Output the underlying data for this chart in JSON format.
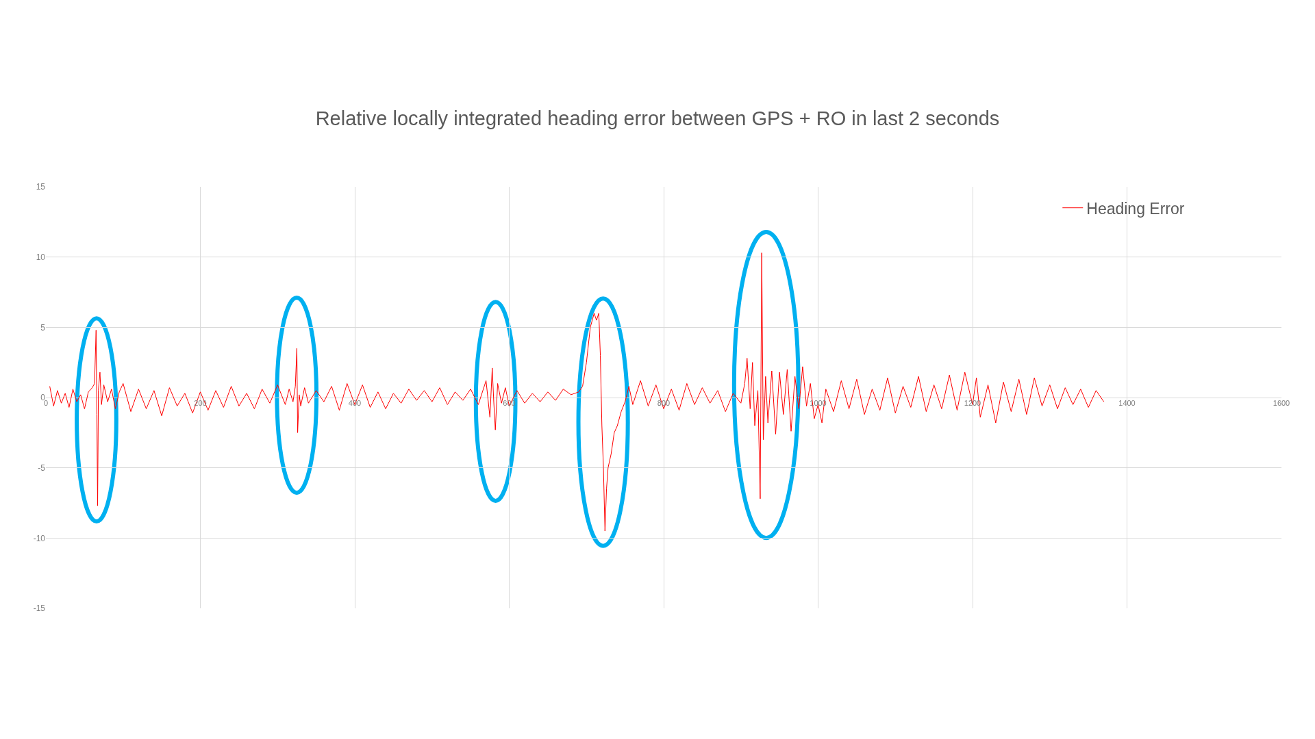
{
  "chart_data": {
    "type": "line",
    "title": "Relative locally integrated heading error between GPS + RO in last 2 seconds",
    "x": [
      5,
      10,
      15,
      20,
      25,
      30,
      35,
      40,
      45,
      50,
      55,
      60,
      63,
      65,
      66,
      67,
      68,
      70,
      72,
      75,
      80,
      85,
      90,
      95,
      100,
      110,
      120,
      130,
      140,
      150,
      160,
      170,
      180,
      190,
      200,
      210,
      220,
      230,
      240,
      250,
      260,
      270,
      280,
      290,
      300,
      310,
      315,
      320,
      323,
      325,
      326,
      328,
      330,
      335,
      340,
      350,
      360,
      370,
      380,
      390,
      400,
      410,
      420,
      430,
      440,
      450,
      460,
      470,
      480,
      490,
      500,
      510,
      520,
      530,
      540,
      550,
      560,
      570,
      575,
      578,
      580,
      582,
      585,
      590,
      595,
      600,
      610,
      620,
      630,
      640,
      650,
      660,
      670,
      680,
      690,
      695,
      700,
      705,
      710,
      713,
      716,
      718,
      720,
      722,
      724,
      726,
      728,
      732,
      736,
      740,
      745,
      750,
      755,
      760,
      770,
      780,
      790,
      800,
      810,
      820,
      830,
      840,
      850,
      860,
      870,
      880,
      890,
      900,
      905,
      908,
      912,
      915,
      918,
      922,
      925,
      927,
      929,
      932,
      935,
      940,
      945,
      950,
      955,
      960,
      965,
      970,
      975,
      980,
      985,
      990,
      995,
      1000,
      1005,
      1010,
      1020,
      1030,
      1040,
      1050,
      1060,
      1070,
      1080,
      1090,
      1100,
      1110,
      1120,
      1130,
      1140,
      1150,
      1160,
      1170,
      1180,
      1190,
      1200,
      1205,
      1210,
      1220,
      1230,
      1240,
      1250,
      1260,
      1270,
      1280,
      1290,
      1300,
      1310,
      1320,
      1330,
      1340,
      1350,
      1360,
      1370
    ],
    "series": [
      {
        "name": "Heading Error",
        "color": "#ff0000",
        "values": [
          0.8,
          -0.6,
          0.5,
          -0.4,
          0.3,
          -0.7,
          0.6,
          -0.3,
          0.2,
          -0.8,
          0.4,
          0.7,
          1.0,
          4.8,
          -1.2,
          -7.7,
          0.5,
          1.8,
          -0.5,
          0.9,
          -0.3,
          0.6,
          -0.8,
          0.4,
          1.0,
          -1.0,
          0.6,
          -0.8,
          0.5,
          -1.3,
          0.7,
          -0.6,
          0.3,
          -1.1,
          0.4,
          -0.9,
          0.5,
          -0.7,
          0.8,
          -0.6,
          0.3,
          -0.8,
          0.6,
          -0.4,
          0.9,
          -0.5,
          0.6,
          -0.3,
          0.8,
          3.5,
          -2.5,
          0.2,
          -0.6,
          0.7,
          -0.4,
          0.5,
          -0.3,
          0.8,
          -0.9,
          1.0,
          -0.5,
          0.9,
          -0.7,
          0.4,
          -0.8,
          0.3,
          -0.4,
          0.6,
          -0.2,
          0.5,
          -0.3,
          0.7,
          -0.5,
          0.4,
          -0.2,
          0.6,
          -0.5,
          1.2,
          -1.4,
          2.1,
          -0.3,
          -2.3,
          1.0,
          -0.4,
          0.7,
          -0.6,
          0.5,
          -0.4,
          0.3,
          -0.3,
          0.4,
          -0.2,
          0.6,
          0.2,
          0.4,
          0.8,
          2.5,
          5.0,
          6.0,
          5.5,
          6.0,
          3.0,
          -2.0,
          -5.0,
          -9.5,
          -6.5,
          -5.0,
          -4.0,
          -2.5,
          -2.0,
          -1.0,
          -0.3,
          0.8,
          -0.5,
          1.2,
          -0.6,
          0.9,
          -0.8,
          0.6,
          -0.9,
          1.0,
          -0.5,
          0.7,
          -0.4,
          0.5,
          -1.0,
          0.3,
          -0.4,
          1.0,
          2.8,
          -0.8,
          2.5,
          -2.0,
          0.5,
          -7.2,
          10.3,
          -3.0,
          1.5,
          -1.8,
          1.9,
          -2.6,
          1.8,
          -1.2,
          2.0,
          -2.4,
          1.5,
          -0.8,
          2.2,
          -0.6,
          1.0,
          -1.5,
          -0.5,
          -1.8,
          0.6,
          -1.0,
          1.2,
          -0.8,
          1.3,
          -1.2,
          0.6,
          -0.9,
          1.4,
          -1.1,
          0.8,
          -0.7,
          1.5,
          -1.0,
          0.9,
          -0.8,
          1.6,
          -0.9,
          1.8,
          -0.5,
          1.4,
          -1.4,
          0.9,
          -1.8,
          1.1,
          -1.0,
          1.3,
          -1.2,
          1.4,
          -0.6,
          0.9,
          -0.8,
          0.7,
          -0.5,
          0.6,
          -0.7,
          0.5,
          -0.3
        ]
      }
    ],
    "xlim": [
      0,
      1600
    ],
    "xticks": [
      0,
      200,
      400,
      600,
      800,
      1000,
      1200,
      1400,
      1600
    ],
    "ylim": [
      -15,
      15
    ],
    "yticks": [
      -15,
      -10,
      -5,
      0,
      5,
      10,
      15
    ],
    "grid": true,
    "legend": "top right",
    "marker": "none",
    "line_style": "solid"
  }
}
